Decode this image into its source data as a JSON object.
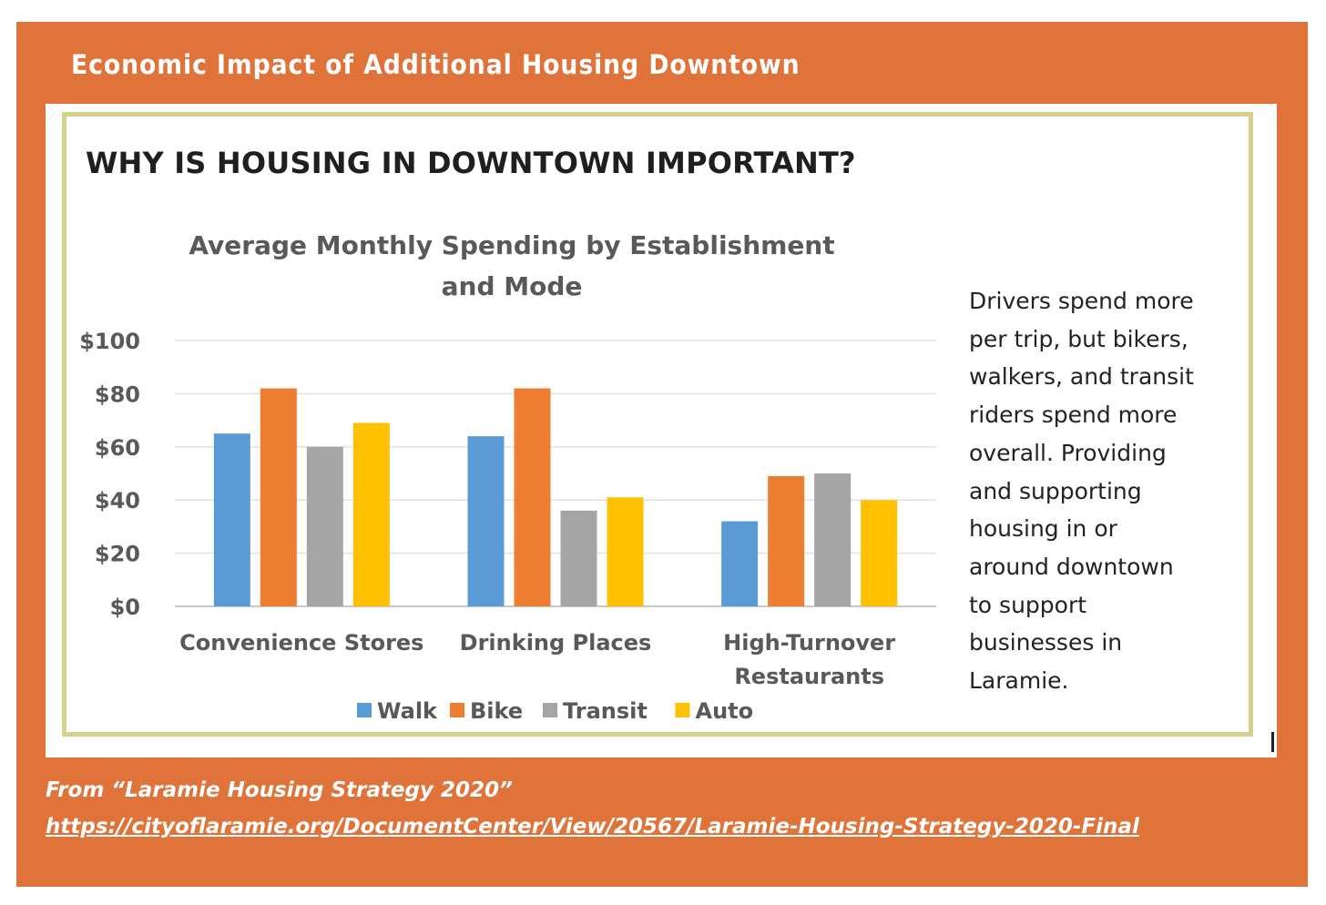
{
  "header": {
    "title": "Economic Impact of Additional Housing Downtown"
  },
  "panel": {
    "headline": "WHY IS HOUSING IN DOWNTOWN IMPORTANT?",
    "side_text": "Drivers spend more\nper trip, but bikers,\nwalkers, and transit\nriders spend more\noverall. Providing\nand supporting\nhousing in or\naround downtown\nto support\nbusinesses in\nLaramie."
  },
  "footer": {
    "source": "From “Laramie Housing Strategy 2020”",
    "link": "https://cityoflaramie.org/DocumentCenter/View/20567/Laramie-Housing-Strategy-2020-Final"
  },
  "colors": {
    "frame": "#e0733a",
    "walk": "#5b9bd5",
    "bike": "#ed7d31",
    "transit": "#a5a5a5",
    "auto": "#ffc000"
  },
  "chart_data": {
    "type": "bar",
    "title": [
      "Average Monthly Spending by Establishment",
      "and Mode"
    ],
    "categories": [
      [
        "Convenience Stores"
      ],
      [
        "Drinking Places"
      ],
      [
        "High-Turnover",
        "Restaurants"
      ]
    ],
    "series": [
      {
        "name": "Walk",
        "color": "#5b9bd5",
        "values": [
          65,
          64,
          32
        ]
      },
      {
        "name": "Bike",
        "color": "#ed7d31",
        "values": [
          82,
          82,
          49
        ]
      },
      {
        "name": "Transit",
        "color": "#a5a5a5",
        "values": [
          60,
          36,
          50
        ]
      },
      {
        "name": "Auto",
        "color": "#ffc000",
        "values": [
          69,
          41,
          40
        ]
      }
    ],
    "ylim": [
      0,
      100
    ],
    "yticks": [
      "$0",
      "$20",
      "$40",
      "$60",
      "$80",
      "$100"
    ],
    "grid": true,
    "legend": "bottom"
  }
}
